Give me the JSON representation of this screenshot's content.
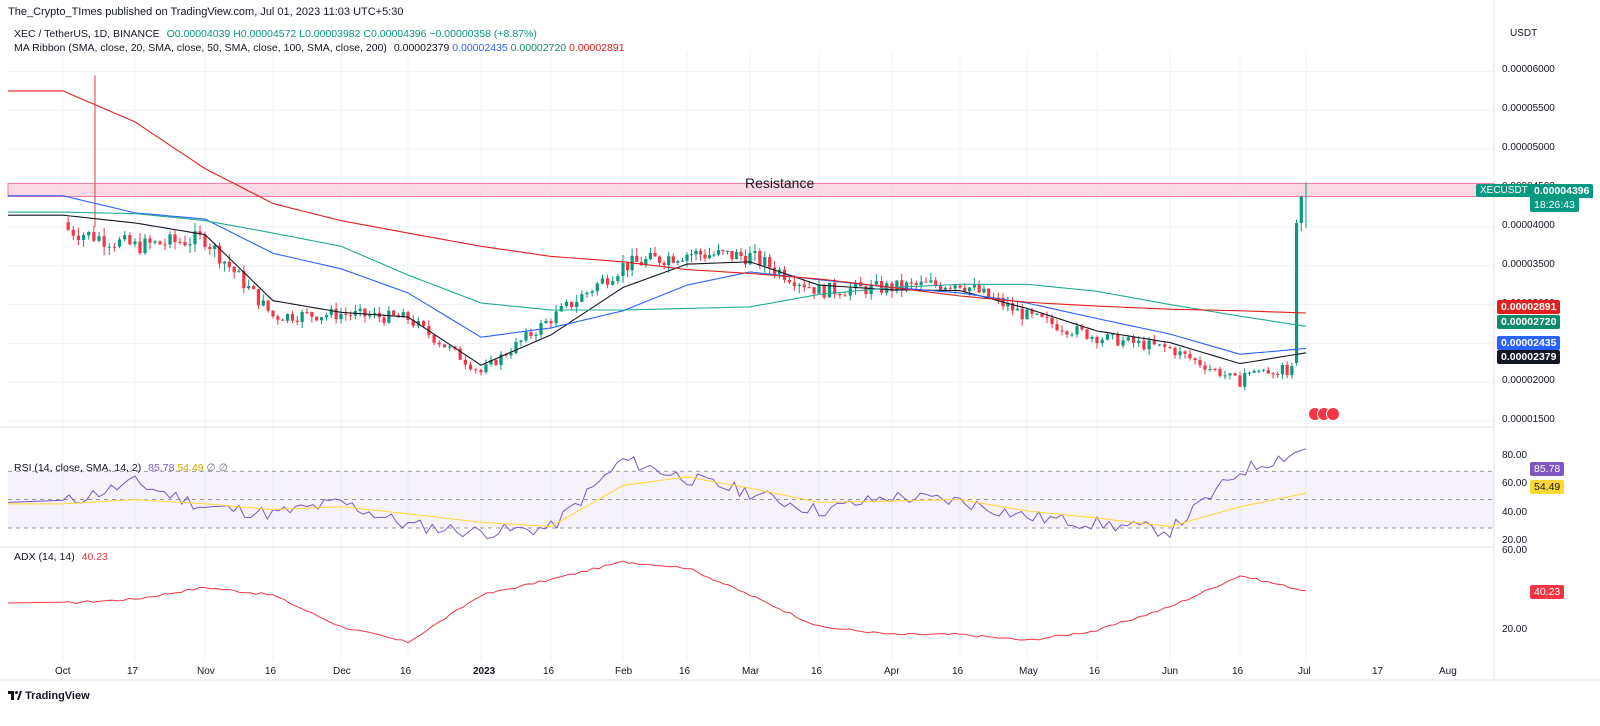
{
  "header": {
    "publisher": "The_Crypto_TImes published on TradingView.com, Jul 01, 2023 11:03 UTC+5:30"
  },
  "symbol_line": {
    "symbol": "XEC / TetherUS, 1D, BINANCE",
    "open": "O0.00004039",
    "high": "H0.00004572",
    "low": "L0.00003982",
    "close": "C0.00004396",
    "change": "−0.00000358 (+8.87%)"
  },
  "ma_ribbon": {
    "label": "MA Ribbon (SMA, close, 20, SMA, close, 50, SMA, close, 100, SMA, close, 200)",
    "v20": "0.00002379",
    "v50": "0.00002435",
    "v100": "0.00002720",
    "v200": "0.00002891"
  },
  "currency": "USDT",
  "price_axis": [
    "0.00006000",
    "0.00005500",
    "0.00005000",
    "0.00004500",
    "0.00004000",
    "0.00003500",
    "0.00003000",
    "0.00002500",
    "0.00002000",
    "0.00001500"
  ],
  "last_price": {
    "symbol": "XECUSDT",
    "price": "0.00004396",
    "countdown": "18:26:43"
  },
  "ma_tags": [
    {
      "value": "0.00002891",
      "color": "#e0201f"
    },
    {
      "value": "0.00002720",
      "color": "#0f8a6b"
    },
    {
      "value": "0.00002435",
      "color": "#2962ff"
    },
    {
      "value": "0.00002379",
      "color": "#131722"
    }
  ],
  "resistance": {
    "label": "Resistance",
    "low": 4.39,
    "high": 4.56
  },
  "time_axis": [
    "Oct",
    "17",
    "Nov",
    "16",
    "Dec",
    "16",
    "2023",
    "16",
    "Feb",
    "16",
    "Mar",
    "16",
    "Apr",
    "16",
    "May",
    "16",
    "Jun",
    "16",
    "Jul",
    "17",
    "Aug"
  ],
  "rsi": {
    "label": "RSI (14, close, SMA, 14, 2)",
    "value": "85.78",
    "ma_value": "54.49",
    "extras": "∅ ∅",
    "axis": [
      "80.00",
      "60.00",
      "40.00",
      "20.00"
    ]
  },
  "adx": {
    "label": "ADX (14, 14)",
    "value": "40.23",
    "axis": [
      "60.00",
      "20.00"
    ]
  },
  "footer": {
    "brand": "TradingView"
  },
  "colors": {
    "up": "#089981",
    "down": "#f23645",
    "rsi": "#7e57c2",
    "rsi_ma": "#fdd835",
    "adx": "#f23645",
    "ma20": "#131722",
    "ma50": "#2962ff",
    "ma100": "#22ab94",
    "ma200": "#e0201f"
  },
  "chart_data": {
    "type": "line",
    "title": "XEC / TetherUS, 1D, BINANCE",
    "x": [
      "Oct",
      "Oct 17",
      "Nov",
      "Nov 16",
      "Dec",
      "Dec 16",
      "Jan 2023",
      "Jan 16",
      "Feb",
      "Feb 16",
      "Mar",
      "Mar 16",
      "Apr",
      "Apr 16",
      "May",
      "May 16",
      "Jun",
      "Jun 16",
      "Jul 1"
    ],
    "ylim": [
      1.45e-05,
      6.25e-05
    ],
    "series": [
      {
        "name": "XECUSDT close",
        "values": [
          3.98e-05,
          3.75e-05,
          3.85e-05,
          2.85e-05,
          2.88e-05,
          2.82e-05,
          2.13e-05,
          2.82e-05,
          3.5e-05,
          3.66e-05,
          3.62e-05,
          3.18e-05,
          3.22e-05,
          3.28e-05,
          2.85e-05,
          2.58e-05,
          2.43e-05,
          2e-05,
          4.396e-05
        ]
      },
      {
        "name": "SMA 20",
        "values": [
          4.15e-05,
          4.05e-05,
          3.9e-05,
          3.05e-05,
          2.9e-05,
          2.84e-05,
          2.22e-05,
          2.61e-05,
          3.22e-05,
          3.52e-05,
          3.55e-05,
          3.25e-05,
          3.19e-05,
          3.18e-05,
          2.95e-05,
          2.66e-05,
          2.51e-05,
          2.24e-05,
          2.379e-05
        ]
      },
      {
        "name": "SMA 50",
        "values": [
          4.4e-05,
          4.18e-05,
          4.1e-05,
          3.66e-05,
          3.46e-05,
          3.15e-05,
          2.58e-05,
          2.7e-05,
          2.92e-05,
          3.25e-05,
          3.42e-05,
          3.32e-05,
          3.22e-05,
          3.15e-05,
          3.02e-05,
          2.82e-05,
          2.62e-05,
          2.36e-05,
          2.435e-05
        ]
      },
      {
        "name": "SMA 100",
        "values": [
          4.19e-05,
          4.17e-05,
          4.08e-05,
          3.92e-05,
          3.75e-05,
          3.38e-05,
          3.02e-05,
          2.93e-05,
          2.93e-05,
          2.95e-05,
          2.97e-05,
          3.13e-05,
          3.22e-05,
          3.26e-05,
          3.26e-05,
          3.17e-05,
          3e-05,
          2.85e-05,
          2.72e-05
        ]
      },
      {
        "name": "SMA 200",
        "values": [
          5.75e-05,
          5.35e-05,
          4.75e-05,
          4.3e-05,
          4.08e-05,
          3.92e-05,
          3.75e-05,
          3.62e-05,
          3.55e-05,
          3.45e-05,
          3.4e-05,
          3.33e-05,
          3.22e-05,
          3.11e-05,
          3.03e-05,
          2.98e-05,
          2.94e-05,
          2.92e-05,
          2.891e-05
        ]
      }
    ],
    "rsi": {
      "ylim": [
        18,
        92
      ],
      "bands": [
        70,
        50,
        30
      ],
      "values": [
        48,
        62,
        45,
        40,
        48,
        32,
        27,
        30,
        78,
        65,
        55,
        42,
        52,
        49,
        38,
        33,
        28,
        70,
        85.78
      ]
    },
    "rsi_ma": {
      "values": [
        47,
        50,
        47,
        43,
        45,
        40,
        34,
        31,
        60,
        66,
        58,
        48,
        49,
        50,
        42,
        37,
        31,
        45,
        54.49
      ]
    },
    "adx": {
      "ylim": [
        5,
        62
      ],
      "values": [
        34,
        36,
        42,
        38,
        22,
        14,
        38,
        46,
        55,
        52,
        38,
        22,
        18,
        18,
        15,
        20,
        32,
        48,
        40.23
      ]
    }
  }
}
